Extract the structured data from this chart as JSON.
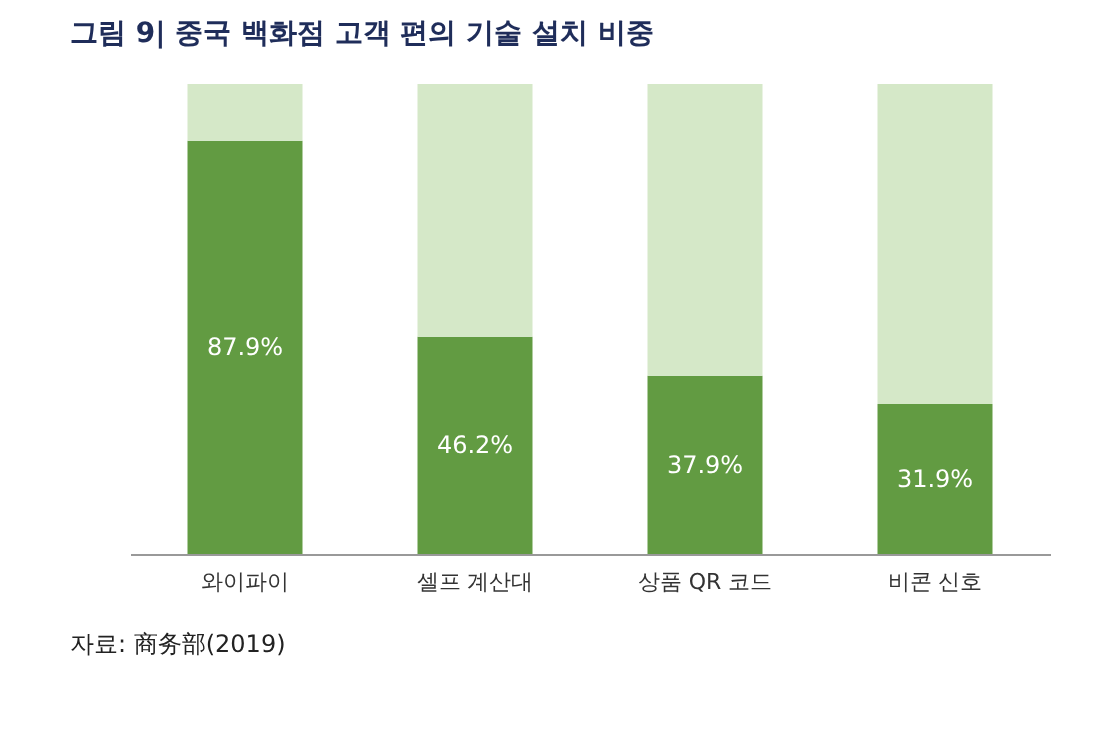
{
  "chart_data": {
    "type": "bar",
    "title": "그림 9| 중국 백화점 고객 편의 기술 설치 비중",
    "categories": [
      "와이파이",
      "셀프 계산대",
      "상품 QR 코드",
      "비콘 신호"
    ],
    "stacked": true,
    "ylim": [
      0,
      100
    ],
    "tick_labels": "x",
    "grid": false,
    "series": [
      {
        "color": "#629b42",
        "values": [
          87.9,
          46.2,
          37.9,
          31.9
        ],
        "value_labels": [
          "87.9%",
          "46.2%",
          "37.9%",
          "31.9%"
        ]
      },
      {
        "color": "#d5e8c8",
        "values": [
          12.1,
          53.8,
          62.1,
          68.1
        ]
      }
    ],
    "annotations": [
      "자료: 商务部(2019)"
    ]
  }
}
